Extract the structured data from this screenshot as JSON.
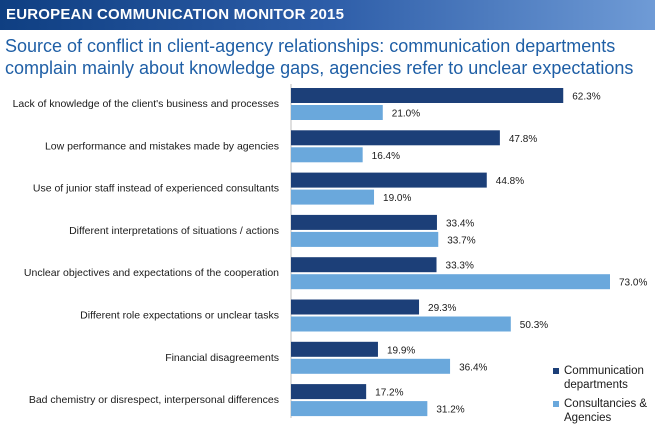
{
  "banner": {
    "title": "EUROPEAN COMMUNICATION MONITOR 2015"
  },
  "headline": {
    "line1": "Source of conflict in client-agency relationships: communication departments",
    "line2": "complain mainly about knowledge gaps, agencies refer to unclear expectations"
  },
  "colors": {
    "dark": "#1c3f78",
    "light": "#6aa8dc",
    "banner_start": "#0f3f82",
    "title": "#1f5fa6"
  },
  "chart_data": {
    "type": "bar",
    "orientation": "horizontal",
    "title": "Source of conflict in client-agency relationships: communication departments complain mainly about knowledge gaps, agencies refer to unclear expectations",
    "xlabel": "",
    "ylabel": "",
    "xlim": [
      0,
      80
    ],
    "unit": "%",
    "categories": [
      "Lack of knowledge of the client's business and processes",
      "Low performance and mistakes made by agencies",
      "Use of junior staff instead of experienced consultants",
      "Different interpretations of situations / actions",
      "Unclear objectives and expectations of the cooperation",
      "Different role expectations or unclear tasks",
      "Financial disagreements",
      "Bad chemistry or disrespect, interpersonal differences"
    ],
    "series": [
      {
        "name": "Communication departments",
        "color": "#1c3f78",
        "values": [
          62.3,
          47.8,
          44.8,
          33.4,
          33.3,
          29.3,
          19.9,
          17.2
        ],
        "labels": [
          "62.3%",
          "47.8%",
          "44.8%",
          "33.4%",
          "33.3%",
          "29.3%",
          "19.9%",
          "17.2%"
        ]
      },
      {
        "name": "Consultancies & Agencies",
        "color": "#6aa8dc",
        "values": [
          21.0,
          16.4,
          19.0,
          33.7,
          73.0,
          50.3,
          36.4,
          31.2
        ],
        "labels": [
          "21.0%",
          "16.4%",
          "19.0%",
          "33.7%",
          "73.0%",
          "50.3%",
          "36.4%",
          "31.2%"
        ]
      }
    ],
    "legend": {
      "position": "bottom-right",
      "items": [
        {
          "line1": "Communication",
          "line2": "departments"
        },
        {
          "line1": "Consultancies &",
          "line2": "Agencies"
        }
      ]
    }
  }
}
